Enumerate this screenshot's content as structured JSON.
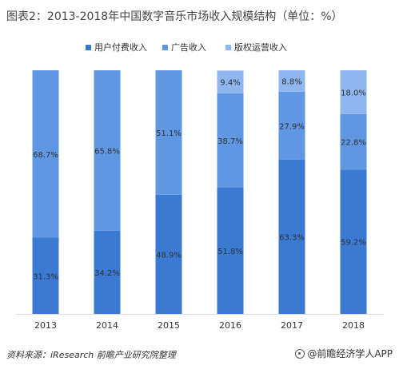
{
  "title": "图表2：2013-2018年中国数字音乐市场收入规模结构（单位：%）",
  "source": "资料来源：iResearch  前瞻产业研究院整理",
  "brand": "@前瞻经济学人APP",
  "colors": {
    "series": [
      "#3a7ad3",
      "#5f97e2",
      "#8fb6ee"
    ],
    "label": "#333333",
    "axis": "#d9d9d9"
  },
  "chart_data": {
    "type": "bar",
    "stacked": true,
    "percent": true,
    "categories": [
      "2013",
      "2014",
      "2015",
      "2016",
      "2017",
      "2018"
    ],
    "series": [
      {
        "name": "用户付费收入",
        "values": [
          31.3,
          34.2,
          48.9,
          51.8,
          63.3,
          59.2
        ],
        "labels": [
          "31.3%",
          "34.2%",
          "48.9%",
          "51.8%",
          "63.3%",
          "59.2%"
        ]
      },
      {
        "name": "广告收入",
        "values": [
          68.7,
          65.8,
          51.1,
          38.7,
          27.9,
          22.8
        ],
        "labels": [
          "68.7%",
          "65.8%",
          "51.1%",
          "38.7%",
          "27.9%",
          "22.8%"
        ]
      },
      {
        "name": "版权运营收入",
        "values": [
          0,
          0,
          0,
          9.4,
          8.8,
          18.0
        ],
        "labels": [
          "",
          "",
          "",
          "9.4%",
          "8.8%",
          "18.0%"
        ]
      }
    ],
    "ylim": [
      0,
      100
    ],
    "legend": "top-center"
  }
}
